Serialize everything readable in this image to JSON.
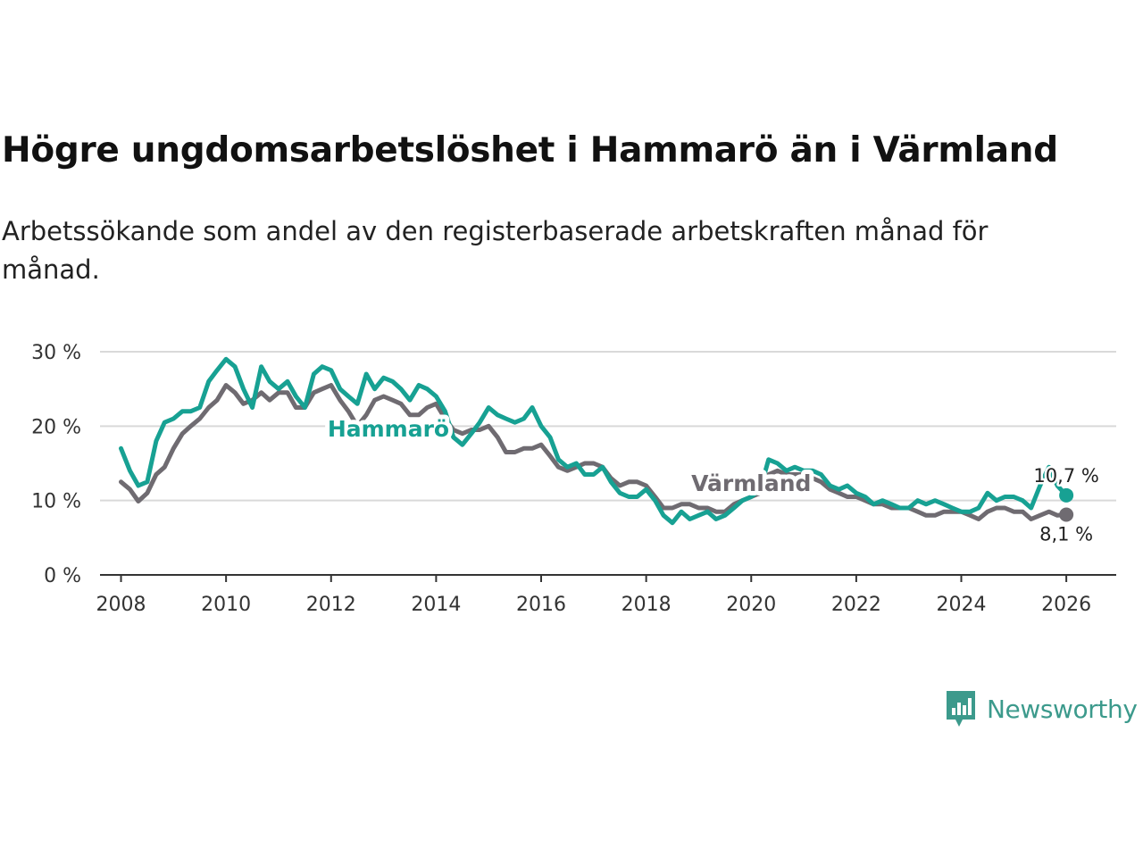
{
  "title": "Högre ungdomsarbetslöshet i Hammarö än i Värmland",
  "subtitle": "Arbetssökande som andel av den registerbaserade arbetskraften månad för månad.",
  "brand": {
    "name": "Newsworthy",
    "icon": "newsworthy-logo-icon",
    "color": "#3c9a8c"
  },
  "chart_data": {
    "type": "line",
    "title": "Högre ungdomsarbetslöshet i Hammarö än i Värmland",
    "xlabel": "",
    "ylabel": "",
    "xlim": [
      2007.6,
      2026.95
    ],
    "ylim": [
      0,
      30
    ],
    "grid": true,
    "y_ticks": [
      0,
      10,
      20,
      30
    ],
    "y_tick_labels": [
      "0 %",
      "10 %",
      "20 %",
      "30 %"
    ],
    "x_ticks": [
      2008,
      2010,
      2012,
      2014,
      2016,
      2018,
      2020,
      2022,
      2024,
      2026
    ],
    "x_tick_labels": [
      "2008",
      "2010",
      "2012",
      "2014",
      "2016",
      "2018",
      "2020",
      "2022",
      "2024",
      "2026"
    ],
    "series": [
      {
        "name": "Värmland",
        "color": "#6f6b71",
        "label": "Värmland",
        "end_label": "8,1 %",
        "points": [
          [
            2008.0,
            12.5
          ],
          [
            2008.17,
            11.5
          ],
          [
            2008.33,
            9.9
          ],
          [
            2008.5,
            11.0
          ],
          [
            2008.67,
            13.5
          ],
          [
            2008.83,
            14.5
          ],
          [
            2009.0,
            17.0
          ],
          [
            2009.17,
            19.0
          ],
          [
            2009.33,
            20.0
          ],
          [
            2009.5,
            21.0
          ],
          [
            2009.67,
            22.5
          ],
          [
            2009.83,
            23.5
          ],
          [
            2010.0,
            25.5
          ],
          [
            2010.17,
            24.5
          ],
          [
            2010.33,
            23.0
          ],
          [
            2010.5,
            23.5
          ],
          [
            2010.67,
            24.5
          ],
          [
            2010.83,
            23.5
          ],
          [
            2011.0,
            24.5
          ],
          [
            2011.17,
            24.5
          ],
          [
            2011.33,
            22.5
          ],
          [
            2011.5,
            22.5
          ],
          [
            2011.67,
            24.5
          ],
          [
            2011.83,
            25.0
          ],
          [
            2012.0,
            25.5
          ],
          [
            2012.17,
            23.5
          ],
          [
            2012.33,
            22.0
          ],
          [
            2012.5,
            20.0
          ],
          [
            2012.67,
            21.5
          ],
          [
            2012.83,
            23.5
          ],
          [
            2013.0,
            24.0
          ],
          [
            2013.17,
            23.5
          ],
          [
            2013.33,
            23.0
          ],
          [
            2013.5,
            21.5
          ],
          [
            2013.67,
            21.5
          ],
          [
            2013.83,
            22.5
          ],
          [
            2014.0,
            23.0
          ],
          [
            2014.17,
            21.0
          ],
          [
            2014.33,
            19.5
          ],
          [
            2014.5,
            19.0
          ],
          [
            2014.67,
            19.5
          ],
          [
            2014.83,
            19.5
          ],
          [
            2015.0,
            20.0
          ],
          [
            2015.17,
            18.5
          ],
          [
            2015.33,
            16.5
          ],
          [
            2015.5,
            16.5
          ],
          [
            2015.67,
            17.0
          ],
          [
            2015.83,
            17.0
          ],
          [
            2016.0,
            17.5
          ],
          [
            2016.17,
            16.0
          ],
          [
            2016.33,
            14.5
          ],
          [
            2016.5,
            14.0
          ],
          [
            2016.67,
            14.5
          ],
          [
            2016.83,
            15.0
          ],
          [
            2017.0,
            15.0
          ],
          [
            2017.17,
            14.5
          ],
          [
            2017.33,
            13.0
          ],
          [
            2017.5,
            12.0
          ],
          [
            2017.67,
            12.5
          ],
          [
            2017.83,
            12.5
          ],
          [
            2018.0,
            12.0
          ],
          [
            2018.17,
            10.5
          ],
          [
            2018.33,
            9.0
          ],
          [
            2018.5,
            9.0
          ],
          [
            2018.67,
            9.5
          ],
          [
            2018.83,
            9.5
          ],
          [
            2019.0,
            9.0
          ],
          [
            2019.17,
            9.0
          ],
          [
            2019.33,
            8.5
          ],
          [
            2019.5,
            8.5
          ],
          [
            2019.67,
            9.5
          ],
          [
            2019.83,
            10.0
          ],
          [
            2020.0,
            10.5
          ],
          [
            2020.17,
            11.0
          ],
          [
            2020.33,
            13.5
          ],
          [
            2020.5,
            14.0
          ],
          [
            2020.67,
            13.5
          ],
          [
            2020.83,
            13.5
          ],
          [
            2021.0,
            13.5
          ],
          [
            2021.17,
            13.0
          ],
          [
            2021.33,
            12.5
          ],
          [
            2021.5,
            11.5
          ],
          [
            2021.67,
            11.0
          ],
          [
            2021.83,
            10.5
          ],
          [
            2022.0,
            10.5
          ],
          [
            2022.17,
            10.0
          ],
          [
            2022.33,
            9.5
          ],
          [
            2022.5,
            9.5
          ],
          [
            2022.67,
            9.0
          ],
          [
            2022.83,
            9.0
          ],
          [
            2023.0,
            9.0
          ],
          [
            2023.17,
            8.5
          ],
          [
            2023.33,
            8.0
          ],
          [
            2023.5,
            8.0
          ],
          [
            2023.67,
            8.5
          ],
          [
            2023.83,
            8.5
          ],
          [
            2024.0,
            8.5
          ],
          [
            2024.17,
            8.0
          ],
          [
            2024.33,
            7.5
          ],
          [
            2024.5,
            8.5
          ],
          [
            2024.67,
            9.0
          ],
          [
            2024.83,
            9.0
          ],
          [
            2025.0,
            8.5
          ],
          [
            2025.17,
            8.5
          ],
          [
            2025.33,
            7.5
          ],
          [
            2025.5,
            8.0
          ],
          [
            2025.67,
            8.5
          ],
          [
            2025.83,
            8.0
          ],
          [
            2026.0,
            8.1
          ]
        ]
      },
      {
        "name": "Hammarö",
        "color": "#17a193",
        "label": "Hammarö",
        "end_label": "10,7 %",
        "points": [
          [
            2008.0,
            17.0
          ],
          [
            2008.17,
            14.0
          ],
          [
            2008.33,
            12.0
          ],
          [
            2008.5,
            12.5
          ],
          [
            2008.67,
            18.0
          ],
          [
            2008.83,
            20.5
          ],
          [
            2009.0,
            21.0
          ],
          [
            2009.17,
            22.0
          ],
          [
            2009.33,
            22.0
          ],
          [
            2009.5,
            22.5
          ],
          [
            2009.67,
            26.0
          ],
          [
            2009.83,
            27.5
          ],
          [
            2010.0,
            29.0
          ],
          [
            2010.17,
            28.0
          ],
          [
            2010.33,
            25.0
          ],
          [
            2010.5,
            22.5
          ],
          [
            2010.67,
            28.0
          ],
          [
            2010.83,
            26.0
          ],
          [
            2011.0,
            25.0
          ],
          [
            2011.17,
            26.0
          ],
          [
            2011.33,
            24.0
          ],
          [
            2011.5,
            22.5
          ],
          [
            2011.67,
            27.0
          ],
          [
            2011.83,
            28.0
          ],
          [
            2012.0,
            27.5
          ],
          [
            2012.17,
            25.0
          ],
          [
            2012.33,
            24.0
          ],
          [
            2012.5,
            23.0
          ],
          [
            2012.67,
            27.0
          ],
          [
            2012.83,
            25.0
          ],
          [
            2013.0,
            26.5
          ],
          [
            2013.17,
            26.0
          ],
          [
            2013.33,
            25.0
          ],
          [
            2013.5,
            23.5
          ],
          [
            2013.67,
            25.5
          ],
          [
            2013.83,
            25.0
          ],
          [
            2014.0,
            24.0
          ],
          [
            2014.17,
            22.0
          ],
          [
            2014.33,
            18.5
          ],
          [
            2014.5,
            17.5
          ],
          [
            2014.67,
            19.0
          ],
          [
            2014.83,
            20.5
          ],
          [
            2015.0,
            22.5
          ],
          [
            2015.17,
            21.5
          ],
          [
            2015.33,
            21.0
          ],
          [
            2015.5,
            20.5
          ],
          [
            2015.67,
            21.0
          ],
          [
            2015.83,
            22.5
          ],
          [
            2016.0,
            20.0
          ],
          [
            2016.17,
            18.5
          ],
          [
            2016.33,
            15.5
          ],
          [
            2016.5,
            14.5
          ],
          [
            2016.67,
            15.0
          ],
          [
            2016.83,
            13.5
          ],
          [
            2017.0,
            13.5
          ],
          [
            2017.17,
            14.5
          ],
          [
            2017.33,
            12.5
          ],
          [
            2017.5,
            11.0
          ],
          [
            2017.67,
            10.5
          ],
          [
            2017.83,
            10.5
          ],
          [
            2018.0,
            11.5
          ],
          [
            2018.17,
            10.0
          ],
          [
            2018.33,
            8.0
          ],
          [
            2018.5,
            7.0
          ],
          [
            2018.67,
            8.5
          ],
          [
            2018.83,
            7.5
          ],
          [
            2019.0,
            8.0
          ],
          [
            2019.17,
            8.5
          ],
          [
            2019.33,
            7.5
          ],
          [
            2019.5,
            8.0
          ],
          [
            2019.67,
            9.0
          ],
          [
            2019.83,
            10.0
          ],
          [
            2020.0,
            10.5
          ],
          [
            2020.17,
            11.5
          ],
          [
            2020.33,
            15.5
          ],
          [
            2020.5,
            15.0
          ],
          [
            2020.67,
            14.0
          ],
          [
            2020.83,
            14.5
          ],
          [
            2021.0,
            14.0
          ],
          [
            2021.17,
            14.0
          ],
          [
            2021.33,
            13.5
          ],
          [
            2021.5,
            12.0
          ],
          [
            2021.67,
            11.5
          ],
          [
            2021.83,
            12.0
          ],
          [
            2022.0,
            11.0
          ],
          [
            2022.17,
            10.5
          ],
          [
            2022.33,
            9.5
          ],
          [
            2022.5,
            10.0
          ],
          [
            2022.67,
            9.5
          ],
          [
            2022.83,
            9.0
          ],
          [
            2023.0,
            9.0
          ],
          [
            2023.17,
            10.0
          ],
          [
            2023.33,
            9.5
          ],
          [
            2023.5,
            10.0
          ],
          [
            2023.67,
            9.5
          ],
          [
            2023.83,
            9.0
          ],
          [
            2024.0,
            8.5
          ],
          [
            2024.17,
            8.5
          ],
          [
            2024.33,
            9.0
          ],
          [
            2024.5,
            11.0
          ],
          [
            2024.67,
            10.0
          ],
          [
            2024.83,
            10.5
          ],
          [
            2025.0,
            10.5
          ],
          [
            2025.17,
            10.0
          ],
          [
            2025.33,
            9.0
          ],
          [
            2025.5,
            12.0
          ],
          [
            2025.67,
            14.5
          ],
          [
            2025.83,
            12.0
          ],
          [
            2026.0,
            10.7
          ]
        ]
      }
    ]
  }
}
